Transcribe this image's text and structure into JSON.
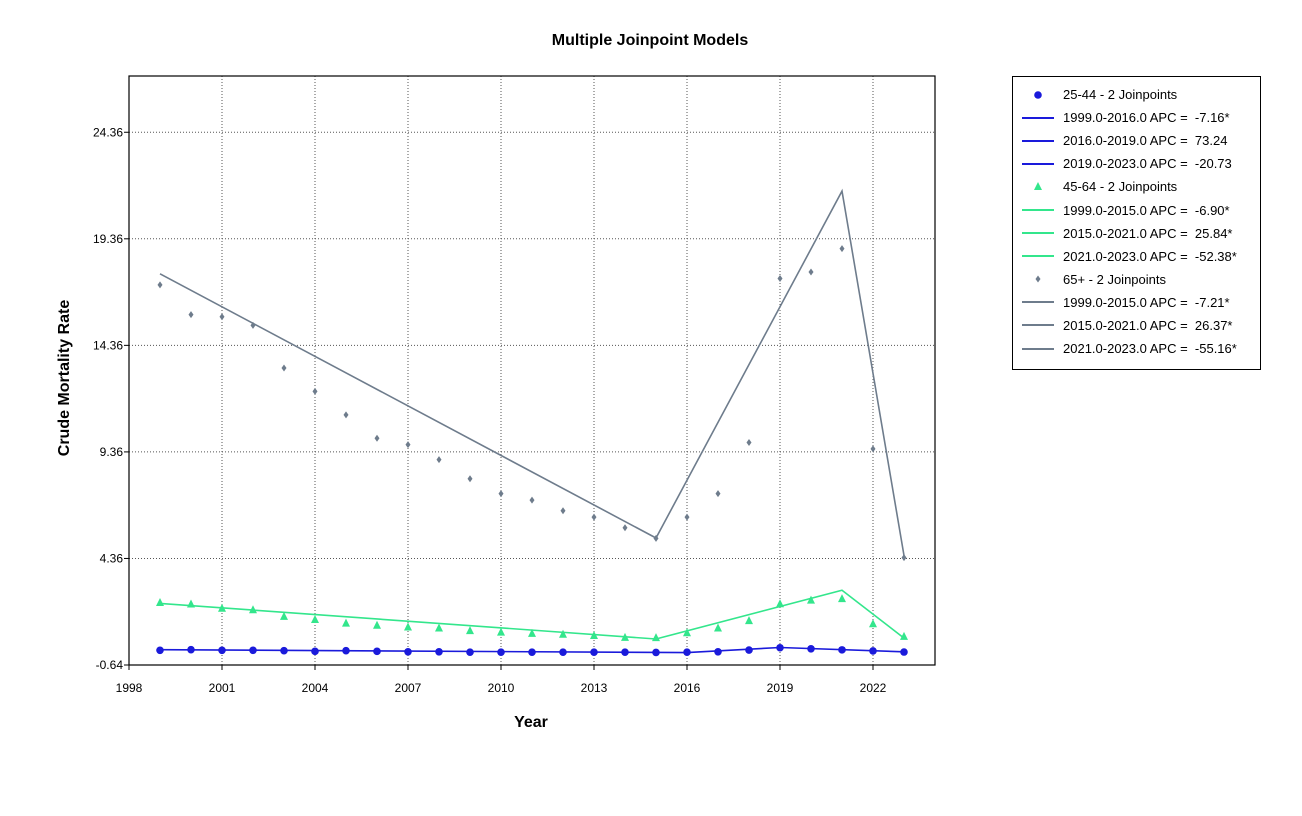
{
  "chart_data": {
    "type": "line",
    "title": "Multiple Joinpoint Models",
    "xlabel": "Year",
    "ylabel": "Crude Mortality Rate",
    "xlim": [
      1998,
      2024
    ],
    "ylim": [
      -0.64,
      27.0
    ],
    "x_ticks": [
      1998,
      2001,
      2004,
      2007,
      2010,
      2013,
      2016,
      2019,
      2022
    ],
    "y_ticks": [
      -0.64,
      4.36,
      9.36,
      14.36,
      19.36,
      24.36
    ],
    "x_tick_labels": [
      "1998",
      "2001",
      "2004",
      "2007",
      "2010",
      "2013",
      "2016",
      "2019",
      "2022"
    ],
    "y_tick_labels": [
      "-0.64",
      "4.36",
      "9.36",
      "14.36",
      "19.36",
      "24.36"
    ],
    "grid": true,
    "legend_position": "right",
    "series": [
      {
        "name": "25-44 - 2 Joinpoints",
        "marker": "circle",
        "color": "#1a1adb",
        "x": [
          1999,
          2000,
          2001,
          2002,
          2003,
          2004,
          2005,
          2006,
          2007,
          2008,
          2009,
          2010,
          2011,
          2012,
          2013,
          2014,
          2015,
          2016,
          2017,
          2018,
          2019,
          2020,
          2021,
          2022,
          2023
        ],
        "observed": [
          0.05,
          0.08,
          0.05,
          0.05,
          0.03,
          0.0,
          0.03,
          0.0,
          -0.02,
          -0.02,
          -0.04,
          -0.04,
          -0.04,
          -0.04,
          -0.04,
          -0.04,
          -0.05,
          -0.04,
          -0.02,
          0.06,
          0.17,
          0.12,
          0.07,
          0.02,
          -0.03
        ],
        "fitted_x": [
          1999,
          2016,
          2019,
          2023
        ],
        "fitted_y": [
          0.08,
          -0.06,
          0.18,
          -0.02
        ],
        "segments": [
          {
            "label": "1999.0-2016.0 APC =  -7.16*"
          },
          {
            "label": "2016.0-2019.0 APC =  73.24"
          },
          {
            "label": "2019.0-2023.0 APC =  -20.73"
          }
        ]
      },
      {
        "name": "45-64 - 2 Joinpoints",
        "marker": "triangle",
        "color": "#33e68c",
        "x": [
          1999,
          2000,
          2001,
          2002,
          2003,
          2004,
          2005,
          2006,
          2007,
          2008,
          2009,
          2010,
          2011,
          2012,
          2013,
          2014,
          2015,
          2016,
          2017,
          2018,
          2019,
          2020,
          2021,
          2022,
          2023
        ],
        "observed": [
          2.27,
          2.2,
          2.0,
          1.93,
          1.62,
          1.47,
          1.3,
          1.2,
          1.12,
          1.07,
          0.95,
          0.88,
          0.82,
          0.78,
          0.72,
          0.63,
          0.62,
          0.85,
          1.07,
          1.42,
          2.21,
          2.38,
          2.45,
          1.27,
          0.68
        ],
        "fitted_x": [
          1999,
          2015,
          2021,
          2023
        ],
        "fitted_y": [
          2.25,
          0.58,
          2.87,
          0.62
        ],
        "segments": [
          {
            "label": "1999.0-2015.0 APC =  -6.90*"
          },
          {
            "label": "2015.0-2021.0 APC =  25.84*"
          },
          {
            "label": "2021.0-2023.0 APC =  -52.38*"
          }
        ]
      },
      {
        "name": "65+ - 2 Joinpoints",
        "marker": "diamond",
        "color": "#6e7c8c",
        "x": [
          1999,
          2000,
          2001,
          2002,
          2003,
          2004,
          2005,
          2006,
          2007,
          2008,
          2009,
          2010,
          2011,
          2012,
          2013,
          2014,
          2015,
          2016,
          2017,
          2018,
          2019,
          2020,
          2021,
          2022,
          2023
        ],
        "observed": [
          17.2,
          15.8,
          15.7,
          15.3,
          13.3,
          12.2,
          11.1,
          10.0,
          9.7,
          9.0,
          8.1,
          7.4,
          7.1,
          6.6,
          6.3,
          5.8,
          5.3,
          6.3,
          7.4,
          9.8,
          17.5,
          17.8,
          18.9,
          9.5,
          4.4
        ],
        "fitted_x": [
          1999,
          2015,
          2021,
          2023
        ],
        "fitted_y": [
          17.72,
          5.32,
          21.6,
          4.5
        ],
        "segments": [
          {
            "label": "1999.0-2015.0 APC =  -7.21*"
          },
          {
            "label": "2015.0-2021.0 APC =  26.37*"
          },
          {
            "label": "2021.0-2023.0 APC =  -55.16*"
          }
        ]
      }
    ]
  }
}
